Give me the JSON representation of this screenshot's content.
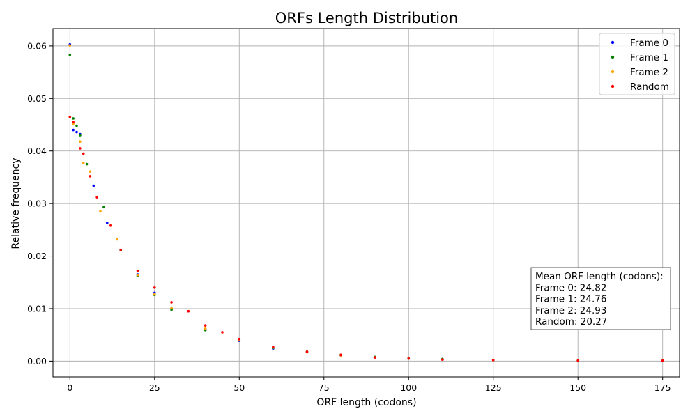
{
  "chart_data": {
    "type": "scatter",
    "title": "ORFs Length Distribution",
    "xlabel": "ORF length (codons)",
    "ylabel": "Relative frequency",
    "xlim": [
      -5,
      180
    ],
    "ylim": [
      -0.003,
      0.0633
    ],
    "xticks": [
      0,
      25,
      50,
      75,
      100,
      125,
      150,
      175
    ],
    "yticks": [
      0.0,
      0.01,
      0.02,
      0.03,
      0.04,
      0.05,
      0.06
    ],
    "ytick_labels": [
      "0.00",
      "0.01",
      "0.02",
      "0.03",
      "0.04",
      "0.05",
      "0.06"
    ],
    "grid": true,
    "legend_position": "top-right",
    "series": [
      {
        "name": "Frame 0",
        "color": "#0000ff",
        "points": [
          [
            0,
            0.0603
          ],
          [
            1,
            0.044
          ],
          [
            2,
            0.0436
          ],
          [
            3,
            0.0432
          ],
          [
            7,
            0.0334
          ],
          [
            11,
            0.0263
          ],
          [
            20,
            0.0165
          ],
          [
            25,
            0.013
          ],
          [
            30,
            0.01
          ],
          [
            40,
            0.006
          ],
          [
            50,
            0.0039
          ],
          [
            60,
            0.0024
          ],
          [
            70,
            0.0017
          ],
          [
            80,
            0.0011
          ],
          [
            90,
            0.0007
          ],
          [
            100,
            0.0005
          ],
          [
            110,
            0.0003
          ],
          [
            125,
            0.0002
          ],
          [
            150,
            0.0001
          ],
          [
            175,
            0.0001
          ]
        ]
      },
      {
        "name": "Frame 1",
        "color": "#008000",
        "points": [
          [
            0,
            0.0583
          ],
          [
            1,
            0.0462
          ],
          [
            2,
            0.0448
          ],
          [
            3,
            0.043
          ],
          [
            5,
            0.0375
          ],
          [
            10,
            0.0293
          ],
          [
            15,
            0.0211
          ],
          [
            20,
            0.0162
          ],
          [
            25,
            0.0126
          ],
          [
            30,
            0.0098
          ],
          [
            40,
            0.0059
          ],
          [
            50,
            0.004
          ],
          [
            60,
            0.0025
          ],
          [
            70,
            0.0018
          ],
          [
            80,
            0.0012
          ],
          [
            90,
            0.0008
          ],
          [
            100,
            0.0005
          ],
          [
            110,
            0.0004
          ],
          [
            125,
            0.0002
          ],
          [
            150,
            0.0001
          ],
          [
            175,
            0.0001
          ]
        ]
      },
      {
        "name": "Frame 2",
        "color": "#ffa500",
        "points": [
          [
            0,
            0.0601
          ],
          [
            1,
            0.0452
          ],
          [
            3,
            0.0418
          ],
          [
            4,
            0.0377
          ],
          [
            6,
            0.0361
          ],
          [
            9,
            0.0285
          ],
          [
            14,
            0.0232
          ],
          [
            20,
            0.0164
          ],
          [
            25,
            0.0127
          ],
          [
            30,
            0.0101
          ],
          [
            40,
            0.0062
          ],
          [
            50,
            0.0041
          ],
          [
            60,
            0.0026
          ],
          [
            70,
            0.0017
          ],
          [
            80,
            0.0011
          ],
          [
            90,
            0.0007
          ],
          [
            100,
            0.0005
          ],
          [
            110,
            0.0003
          ],
          [
            125,
            0.0002
          ],
          [
            150,
            0.0001
          ],
          [
            175,
            0.0001
          ]
        ]
      },
      {
        "name": "Random",
        "color": "#ff0000",
        "points": [
          [
            0,
            0.0465
          ],
          [
            1,
            0.0455
          ],
          [
            3,
            0.0405
          ],
          [
            4,
            0.0395
          ],
          [
            6,
            0.0352
          ],
          [
            8,
            0.0312
          ],
          [
            12,
            0.0258
          ],
          [
            15,
            0.0212
          ],
          [
            20,
            0.0172
          ],
          [
            25,
            0.014
          ],
          [
            30,
            0.0112
          ],
          [
            35,
            0.0095
          ],
          [
            40,
            0.0068
          ],
          [
            45,
            0.0055
          ],
          [
            50,
            0.0042
          ],
          [
            60,
            0.0027
          ],
          [
            70,
            0.0018
          ],
          [
            80,
            0.0012
          ],
          [
            90,
            0.0007
          ],
          [
            100,
            0.0005
          ],
          [
            110,
            0.0003
          ],
          [
            125,
            0.0002
          ],
          [
            150,
            0.0001
          ],
          [
            175,
            0.0001
          ]
        ]
      }
    ],
    "annotation": {
      "lines": [
        "Mean ORF length (codons):",
        "Frame 0: 24.82",
        "Frame 1: 24.76",
        "Frame 2: 24.93",
        "Random: 20.27"
      ],
      "position": "right"
    }
  }
}
